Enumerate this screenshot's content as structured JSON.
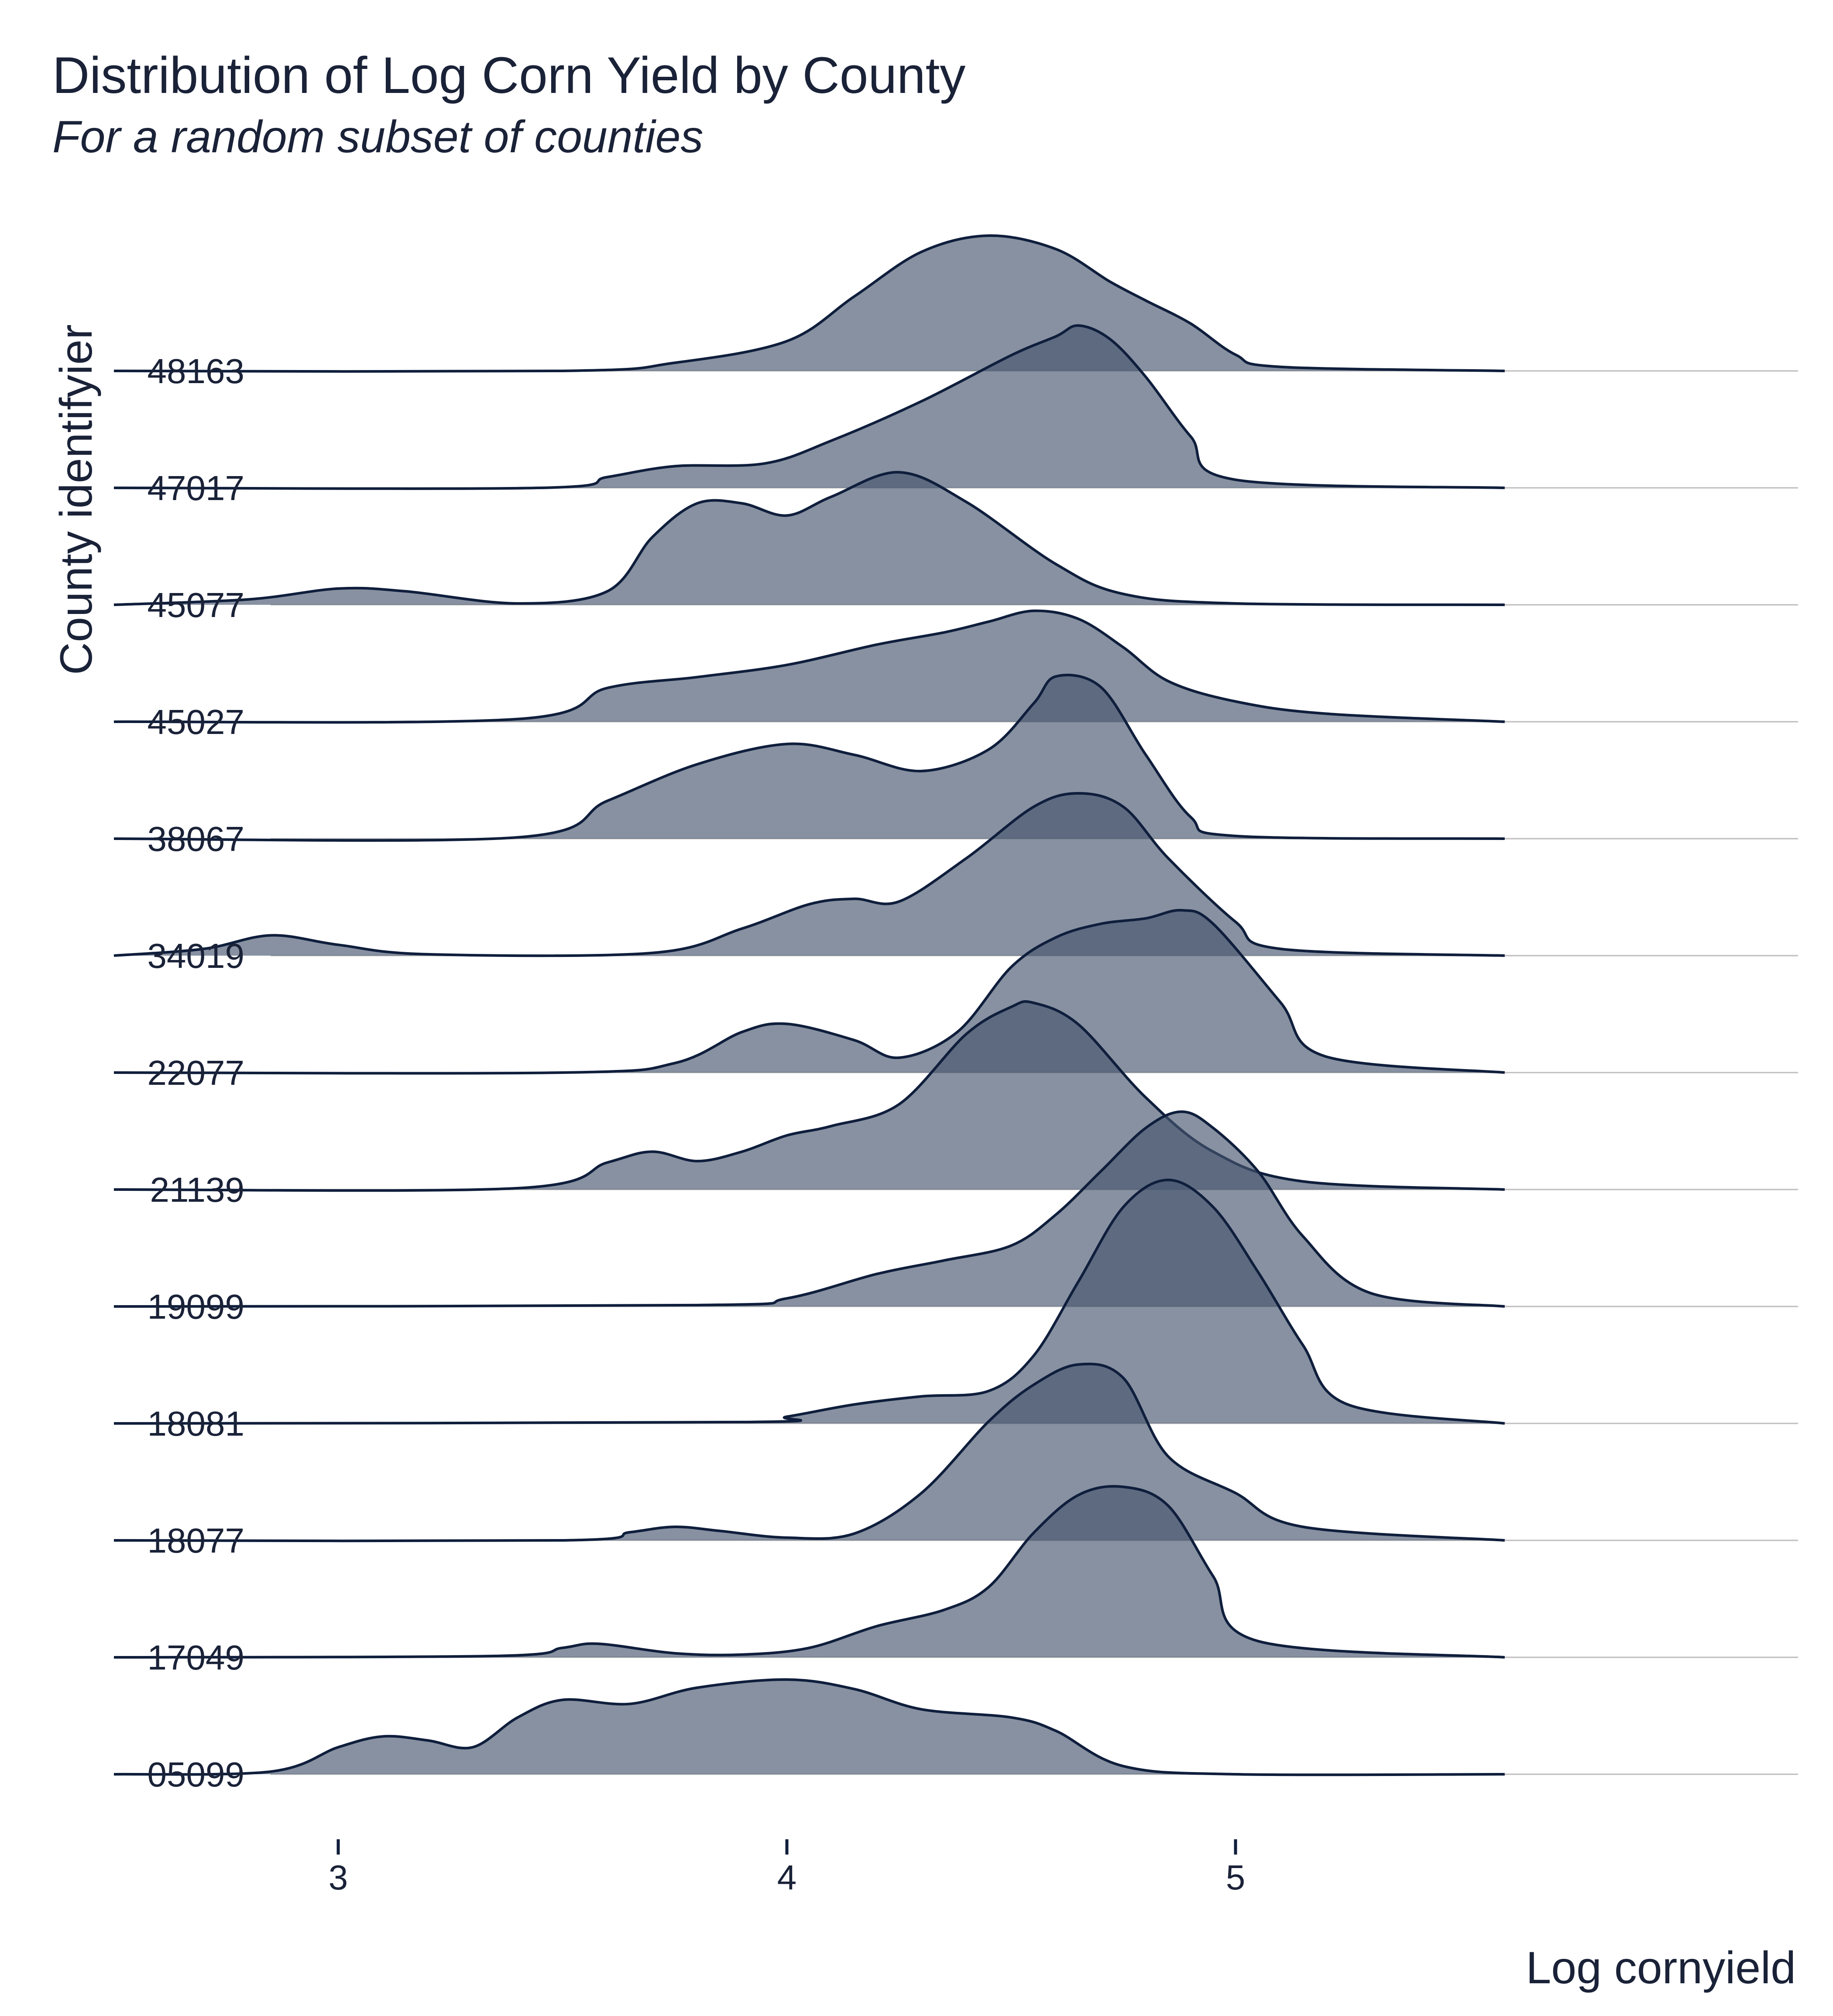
{
  "chart_data": {
    "type": "ridgeline",
    "title": "Distribution of Log Corn Yield by County",
    "subtitle": "For a random subset of counties",
    "xlabel": "Log cornyield",
    "ylabel": "County identifyier",
    "xlim": [
      2.5,
      5.6
    ],
    "xticks": [
      3,
      4,
      5
    ],
    "grid": "horizontal baselines only",
    "colors": {
      "fill": "#46566f",
      "line": "#0f1e3c",
      "grid": "#bdbdbd",
      "text": "#1a2238"
    },
    "categories": [
      "48163",
      "47017",
      "45077",
      "45027",
      "38067",
      "34019",
      "22077",
      "21139",
      "19099",
      "18081",
      "18077",
      "17049",
      "05099"
    ],
    "series": [
      {
        "name": "48163",
        "x": [
          2.5,
          3.5,
          3.75,
          4.0,
          4.15,
          4.3,
          4.45,
          4.6,
          4.72,
          4.8,
          4.9,
          5.0,
          5.1,
          5.6
        ],
        "y": [
          0,
          0,
          0.06,
          0.22,
          0.55,
          0.88,
          1.0,
          0.9,
          0.66,
          0.52,
          0.35,
          0.12,
          0.03,
          0
        ]
      },
      {
        "name": "47017",
        "x": [
          2.5,
          3.45,
          3.6,
          3.75,
          3.95,
          4.1,
          4.3,
          4.5,
          4.6,
          4.65,
          4.72,
          4.8,
          4.9,
          5.0,
          5.6
        ],
        "y": [
          0,
          0,
          0.08,
          0.16,
          0.18,
          0.35,
          0.64,
          0.98,
          1.12,
          1.2,
          1.1,
          0.82,
          0.38,
          0.06,
          0
        ],
        "shifted": true
      },
      {
        "name": "45077",
        "x": [
          2.5,
          2.8,
          3.0,
          3.15,
          3.4,
          3.6,
          3.7,
          3.8,
          3.9,
          4.0,
          4.1,
          4.25,
          4.4,
          4.6,
          4.75,
          5.0,
          5.6
        ],
        "y": [
          0,
          0.04,
          0.12,
          0.1,
          0.01,
          0.1,
          0.5,
          0.75,
          0.75,
          0.66,
          0.8,
          0.98,
          0.76,
          0.3,
          0.08,
          0.01,
          0
        ]
      },
      {
        "name": "45027",
        "x": [
          2.5,
          3.4,
          3.6,
          3.8,
          4.0,
          4.2,
          4.35,
          4.45,
          4.55,
          4.65,
          4.75,
          4.85,
          5.0,
          5.2,
          5.6
        ],
        "y": [
          0,
          0.02,
          0.25,
          0.33,
          0.42,
          0.57,
          0.66,
          0.74,
          0.82,
          0.76,
          0.55,
          0.3,
          0.15,
          0.06,
          0
        ]
      },
      {
        "name": "38067",
        "x": [
          2.5,
          3.4,
          3.6,
          3.8,
          4.0,
          4.15,
          4.3,
          4.45,
          4.55,
          4.6,
          4.7,
          4.8,
          4.9,
          5.0,
          5.6
        ],
        "y": [
          0,
          0.01,
          0.28,
          0.55,
          0.7,
          0.62,
          0.5,
          0.66,
          1.0,
          1.2,
          1.12,
          0.62,
          0.16,
          0.02,
          0
        ]
      },
      {
        "name": "34019",
        "x": [
          2.5,
          2.7,
          2.85,
          3.0,
          3.2,
          3.7,
          3.9,
          4.05,
          4.15,
          4.25,
          4.4,
          4.55,
          4.65,
          4.75,
          4.85,
          5.0,
          5.1,
          5.6
        ],
        "y": [
          0,
          0.05,
          0.15,
          0.08,
          0.01,
          0.02,
          0.2,
          0.38,
          0.42,
          0.4,
          0.72,
          1.1,
          1.2,
          1.1,
          0.72,
          0.25,
          0.05,
          0
        ]
      },
      {
        "name": "22077",
        "x": [
          2.5,
          3.5,
          3.75,
          3.9,
          4.0,
          4.15,
          4.25,
          4.38,
          4.5,
          4.6,
          4.7,
          4.8,
          4.88,
          4.95,
          5.1,
          5.2,
          5.6
        ],
        "y": [
          0,
          0.0,
          0.07,
          0.3,
          0.36,
          0.24,
          0.11,
          0.3,
          0.78,
          1.0,
          1.1,
          1.14,
          1.2,
          1.1,
          0.52,
          0.12,
          0
        ]
      },
      {
        "name": "21139",
        "x": [
          2.5,
          3.4,
          3.6,
          3.7,
          3.8,
          3.9,
          4.0,
          4.1,
          4.25,
          4.4,
          4.5,
          4.55,
          4.65,
          4.8,
          4.95,
          5.15,
          5.6
        ],
        "y": [
          0,
          0.01,
          0.2,
          0.28,
          0.21,
          0.28,
          0.4,
          0.47,
          0.63,
          1.15,
          1.35,
          1.38,
          1.22,
          0.68,
          0.28,
          0.06,
          0
        ]
      },
      {
        "name": "19099",
        "x": [
          2.5,
          3.8,
          4.0,
          4.2,
          4.35,
          4.5,
          4.6,
          4.7,
          4.8,
          4.88,
          4.95,
          5.05,
          5.15,
          5.3,
          5.6
        ],
        "y": [
          0,
          0.01,
          0.06,
          0.24,
          0.34,
          0.45,
          0.68,
          1.0,
          1.32,
          1.44,
          1.32,
          1.0,
          0.52,
          0.1,
          0
        ]
      },
      {
        "name": "18081",
        "x": [
          2.5,
          3.9,
          4.0,
          4.15,
          4.3,
          4.45,
          4.55,
          4.65,
          4.75,
          4.85,
          4.95,
          5.05,
          5.15,
          5.25,
          5.6
        ],
        "y": [
          0,
          0.01,
          0.05,
          0.14,
          0.2,
          0.24,
          0.5,
          1.05,
          1.6,
          1.8,
          1.6,
          1.12,
          0.58,
          0.14,
          0
        ]
      },
      {
        "name": "18077",
        "x": [
          2.5,
          3.5,
          3.65,
          3.75,
          3.85,
          4.0,
          4.15,
          4.3,
          4.45,
          4.55,
          4.65,
          4.75,
          4.85,
          5.0,
          5.15,
          5.6
        ],
        "y": [
          0,
          0,
          0.06,
          0.1,
          0.07,
          0.02,
          0.05,
          0.35,
          0.88,
          1.15,
          1.3,
          1.2,
          0.62,
          0.35,
          0.1,
          0
        ]
      },
      {
        "name": "17049",
        "x": [
          2.5,
          3.35,
          3.5,
          3.58,
          3.75,
          3.9,
          4.05,
          4.2,
          4.35,
          4.45,
          4.55,
          4.65,
          4.75,
          4.85,
          4.95,
          5.05,
          5.6
        ],
        "y": [
          0,
          0.01,
          0.07,
          0.1,
          0.03,
          0.02,
          0.07,
          0.23,
          0.35,
          0.52,
          0.92,
          1.2,
          1.26,
          1.12,
          0.6,
          0.12,
          0
        ]
      },
      {
        "name": "05099",
        "x": [
          2.5,
          2.85,
          3.0,
          3.1,
          3.2,
          3.3,
          3.4,
          3.5,
          3.65,
          3.8,
          4.0,
          4.15,
          4.3,
          4.5,
          4.6,
          4.75,
          5.0,
          5.6
        ],
        "y": [
          0,
          0.02,
          0.2,
          0.28,
          0.25,
          0.2,
          0.42,
          0.55,
          0.52,
          0.64,
          0.7,
          0.63,
          0.48,
          0.42,
          0.32,
          0.06,
          0.0,
          0
        ]
      }
    ]
  }
}
